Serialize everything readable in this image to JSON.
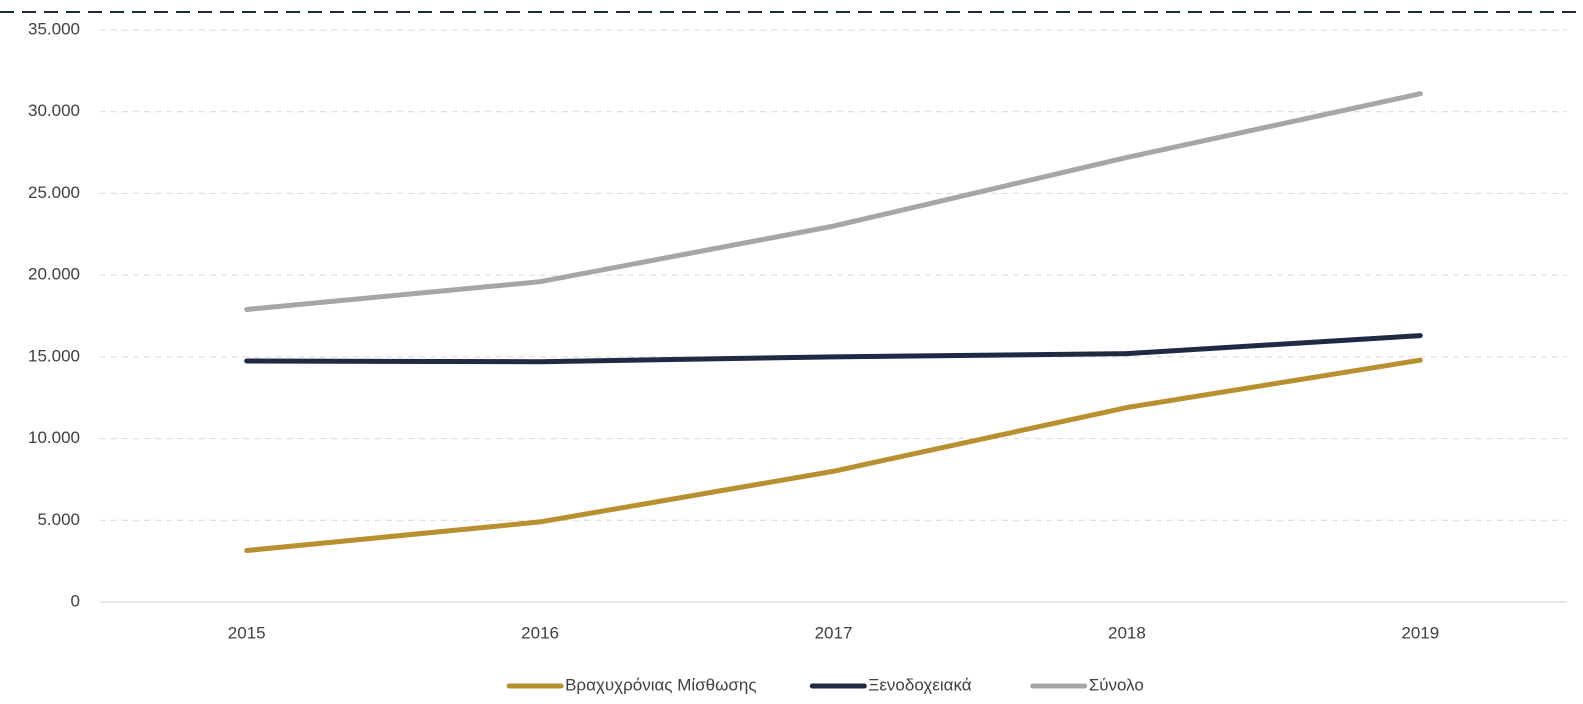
{
  "chart_data": {
    "type": "line",
    "categories": [
      "2015",
      "2016",
      "2017",
      "2018",
      "2019"
    ],
    "series": [
      {
        "name": "Βραχυχρόνιας Μίσθωσης",
        "color": "#b8902f",
        "values": [
          3150,
          4900,
          8000,
          11900,
          14800
        ]
      },
      {
        "name": "Ξενοδοχειακά",
        "color": "#1f2a44",
        "values": [
          14750,
          14700,
          15000,
          15200,
          16300
        ]
      },
      {
        "name": "Σύνολο",
        "color": "#a6a6a6",
        "values": [
          17900,
          19600,
          23000,
          27200,
          31100
        ]
      }
    ],
    "ylim": [
      0,
      35000
    ],
    "yticks": [
      0,
      {
        "value": 5000,
        "label": "5.000"
      },
      {
        "value": 10000,
        "label": "10.000"
      },
      {
        "value": 15000,
        "label": "15.000"
      },
      {
        "value": 20000,
        "label": "20.000"
      },
      {
        "value": 25000,
        "label": "25.000"
      },
      {
        "value": 30000,
        "label": "30.000"
      },
      {
        "value": 35000,
        "label": "35.000"
      }
    ],
    "grid": true,
    "legend": "bottom"
  }
}
